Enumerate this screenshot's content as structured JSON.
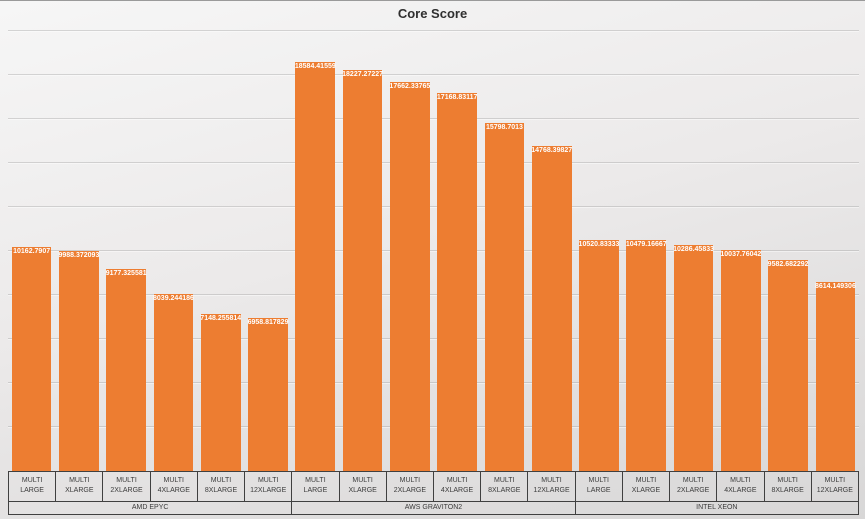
{
  "chart_data": {
    "type": "bar",
    "title": "Core Score",
    "xlabel": "",
    "ylabel": "",
    "ylim": [
      0,
      20000
    ],
    "gridline_step": 2000,
    "grid": true,
    "legend": false,
    "bar_color": "#ED7D31",
    "data_label_color": "#FFFFFF",
    "groups": [
      {
        "label": "AMD EPYC",
        "bars": [
          {
            "category_line1": "MULTI",
            "category_line2": "LARGE",
            "value": 10162.7907,
            "label": "10162.7907"
          },
          {
            "category_line1": "MULTI",
            "category_line2": "XLARGE",
            "value": 9988.372093,
            "label": "9988.372093"
          },
          {
            "category_line1": "MULTI",
            "category_line2": "2XLARGE",
            "value": 9177.325581,
            "label": "9177.325581"
          },
          {
            "category_line1": "MULTI",
            "category_line2": "4XLARGE",
            "value": 8039.244186,
            "label": "8039.244186"
          },
          {
            "category_line1": "MULTI",
            "category_line2": "8XLARGE",
            "value": 7148.255814,
            "label": "7148.255814"
          },
          {
            "category_line1": "MULTI",
            "category_line2": "12XLARGE",
            "value": 6958.817829,
            "label": "6958.817829"
          }
        ]
      },
      {
        "label": "AWS GRAVITON2",
        "bars": [
          {
            "category_line1": "MULTI",
            "category_line2": "LARGE",
            "value": 18584.41559,
            "label": "18584.41559"
          },
          {
            "category_line1": "MULTI",
            "category_line2": "XLARGE",
            "value": 18227.27227,
            "label": "18227.27227"
          },
          {
            "category_line1": "MULTI",
            "category_line2": "2XLARGE",
            "value": 17662.33765,
            "label": "17662.33765"
          },
          {
            "category_line1": "MULTI",
            "category_line2": "4XLARGE",
            "value": 17168.83117,
            "label": "17168.83117"
          },
          {
            "category_line1": "MULTI",
            "category_line2": "8XLARGE",
            "value": 15798.7013,
            "label": "15798.7013"
          },
          {
            "category_line1": "MULTI",
            "category_line2": "12XLARGE",
            "value": 14768.39827,
            "label": "14768.39827"
          }
        ]
      },
      {
        "label": "INTEL XEON",
        "bars": [
          {
            "category_line1": "MULTI",
            "category_line2": "LARGE",
            "value": 10520.83333,
            "label": "10520.83333"
          },
          {
            "category_line1": "MULTI",
            "category_line2": "XLARGE",
            "value": 10479.16667,
            "label": "10479.16667"
          },
          {
            "category_line1": "MULTI",
            "category_line2": "2XLARGE",
            "value": 10286.45833,
            "label": "10286.45833"
          },
          {
            "category_line1": "MULTI",
            "category_line2": "4XLARGE",
            "value": 10037.76042,
            "label": "10037.76042"
          },
          {
            "category_line1": "MULTI",
            "category_line2": "8XLARGE",
            "value": 9582.682292,
            "label": "9582.682292"
          },
          {
            "category_line1": "MULTI",
            "category_line2": "12XLARGE",
            "value": 8614.149306,
            "label": "8614.149306"
          }
        ]
      }
    ]
  }
}
